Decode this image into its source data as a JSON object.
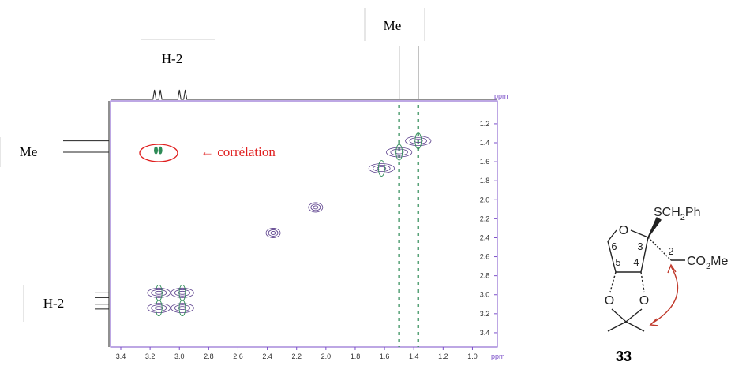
{
  "chart_data": {
    "type": "nmr2d",
    "x_unit": "ppm",
    "y_unit": "ppm",
    "xlim": [
      3.47,
      0.83
    ],
    "ylim": [
      0.96,
      3.55
    ],
    "xticks": [
      3.4,
      3.2,
      {
        "value": 3,
        "label": "3.0"
      },
      2.8,
      2.6,
      2.4,
      2.2,
      {
        "value": 2,
        "label": "2.0"
      },
      1.8,
      1.6,
      1.4,
      1.2,
      {
        "value": 1,
        "label": "1.0"
      }
    ],
    "yticks": [
      1.2,
      1.4,
      1.6,
      1.8,
      {
        "value": 2,
        "label": "2.0"
      },
      2.2,
      2.4,
      2.6,
      2.8,
      {
        "value": 3,
        "label": "3.0"
      },
      3.2,
      3.4
    ],
    "peaks": {
      "x": [
        3.16,
        3.13,
        2.36,
        2.07,
        3.14,
        2.98,
        3.14,
        2.98,
        1.62,
        1.5,
        1.37
      ],
      "y": [
        1.48,
        1.48,
        2.35,
        2.08,
        2.98,
        2.98,
        3.14,
        3.14,
        1.67,
        1.5,
        1.38
      ]
    },
    "contour_color": "#5b3f8c",
    "negative_color": "#2e8b57",
    "axis_color": "#7b4fc9",
    "annotations": {
      "top_me": "Me",
      "top_h2": "H-2",
      "left_me": "Me",
      "left_h2": "H-2",
      "correlation": "← corrélation"
    }
  },
  "structure": {
    "substituent": [
      "SCH",
      "2",
      "Ph"
    ],
    "ester": [
      "CO",
      "2",
      "Me"
    ],
    "ring_o": "O",
    "ketal_o1": "O",
    "ketal_o2": "O",
    "numbers": [
      "2",
      "3",
      "4",
      "5",
      "6"
    ],
    "compound": "33"
  }
}
